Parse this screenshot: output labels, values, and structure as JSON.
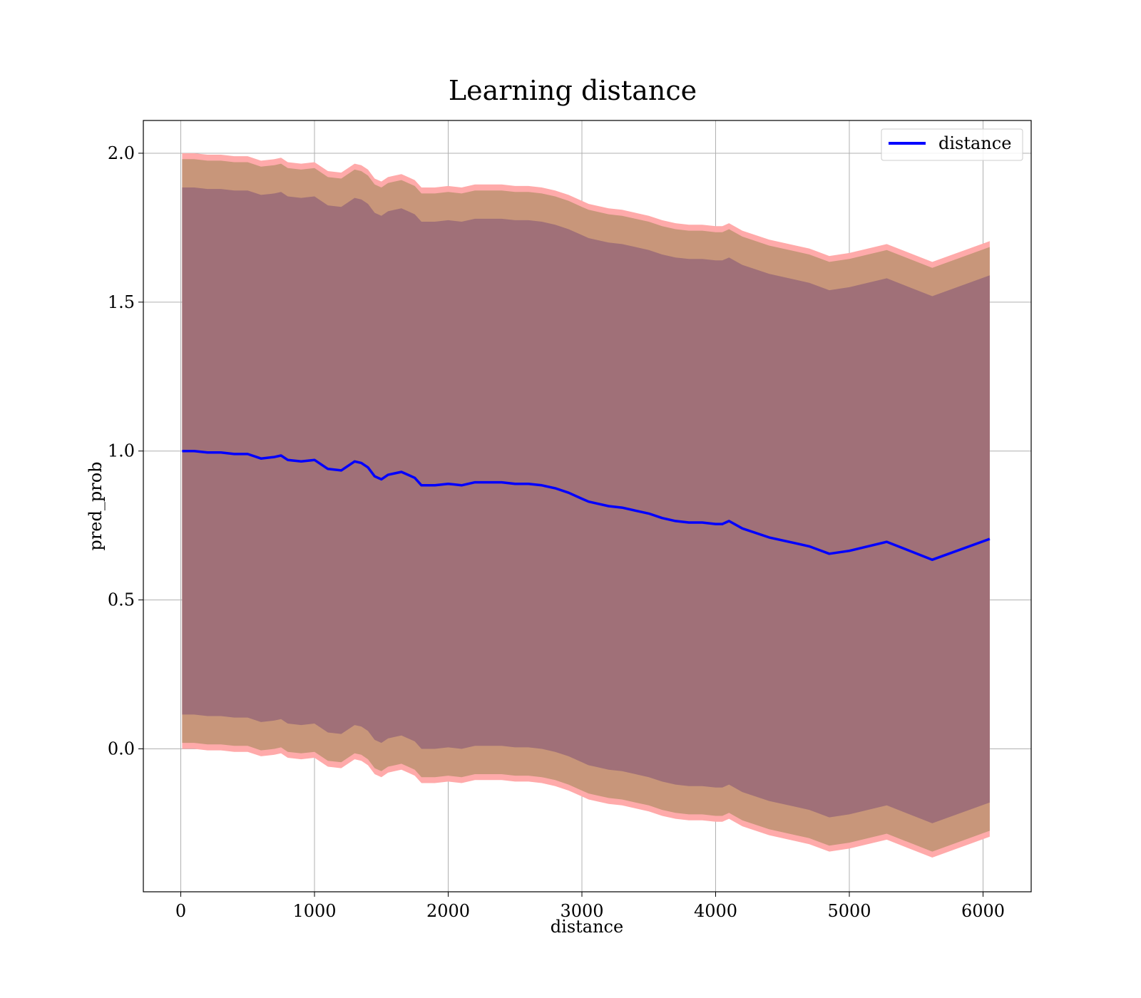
{
  "chart_data": {
    "type": "line",
    "title": "Learning distance",
    "xlabel": "distance",
    "ylabel": "pred_prob",
    "xlim": [
      -280,
      6360
    ],
    "ylim": [
      -0.48,
      2.11
    ],
    "xticks": [
      0,
      1000,
      2000,
      3000,
      4000,
      5000,
      6000
    ],
    "xtick_labels": [
      "0",
      "1000",
      "2000",
      "3000",
      "4000",
      "5000",
      "6000"
    ],
    "yticks": [
      0.0,
      0.5,
      1.0,
      1.5,
      2.0
    ],
    "ytick_labels": [
      "0.0",
      "0.5",
      "1.0",
      "1.5",
      "2.0"
    ],
    "grid": true,
    "legend_position": "top-right",
    "colors": {
      "line": "#0000ff",
      "band_outer": "#ffaaaa",
      "band_middle": "#c8967a",
      "band_inner": "#a07078",
      "grid": "#b0b0b0"
    },
    "series": [
      {
        "name": "distance",
        "x": [
          10,
          100,
          200,
          300,
          400,
          500,
          600,
          700,
          750,
          800,
          900,
          1000,
          1100,
          1200,
          1300,
          1350,
          1400,
          1450,
          1500,
          1550,
          1600,
          1650,
          1700,
          1750,
          1800,
          1900,
          2000,
          2100,
          2200,
          2300,
          2400,
          2500,
          2600,
          2700,
          2800,
          2900,
          3000,
          3050,
          3100,
          3200,
          3300,
          3400,
          3500,
          3600,
          3700,
          3800,
          3900,
          4000,
          4050,
          4100,
          4200,
          4400,
          4600,
          4700,
          4850,
          5000,
          5280,
          5620,
          6050
        ],
        "y": [
          1.0,
          1.0,
          0.995,
          0.995,
          0.99,
          0.99,
          0.975,
          0.98,
          0.985,
          0.97,
          0.965,
          0.97,
          0.94,
          0.935,
          0.965,
          0.96,
          0.945,
          0.915,
          0.905,
          0.92,
          0.925,
          0.93,
          0.92,
          0.91,
          0.885,
          0.885,
          0.89,
          0.885,
          0.895,
          0.895,
          0.895,
          0.89,
          0.89,
          0.885,
          0.875,
          0.86,
          0.84,
          0.83,
          0.825,
          0.815,
          0.81,
          0.8,
          0.79,
          0.775,
          0.765,
          0.76,
          0.76,
          0.755,
          0.755,
          0.765,
          0.74,
          0.71,
          0.69,
          0.68,
          0.655,
          0.665,
          0.695,
          0.635,
          0.705
        ],
        "band_outer_halfwidth": 1.0,
        "band_middle_halfwidth": 0.98,
        "band_inner_halfwidth": 0.885
      }
    ]
  }
}
